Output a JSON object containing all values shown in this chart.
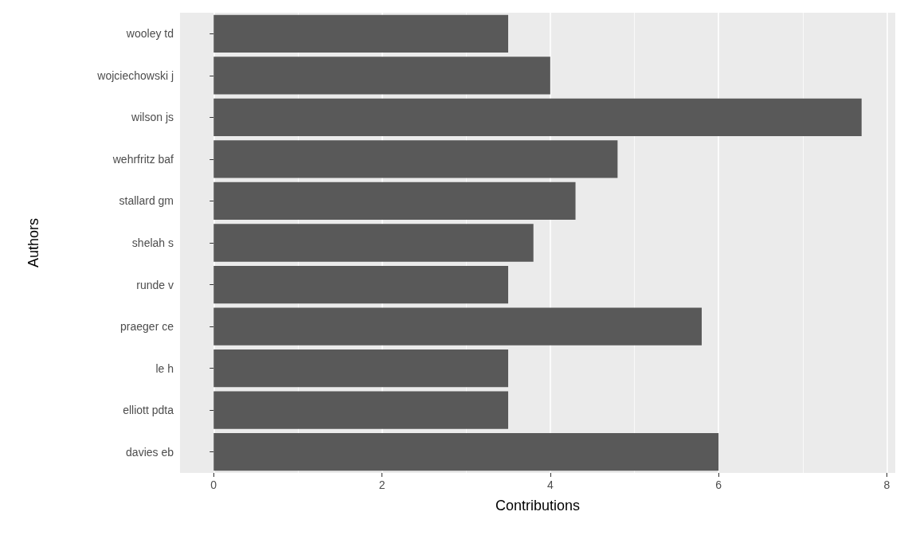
{
  "chart_data": {
    "type": "bar",
    "orientation": "horizontal",
    "xlabel": "Contributions",
    "ylabel": "Authors",
    "categories": [
      "wooley td",
      "wojciechowski j",
      "wilson js",
      "wehrfritz baf",
      "stallard gm",
      "shelah s",
      "runde v",
      "praeger ce",
      "le h",
      "elliott pdta",
      "davies eb"
    ],
    "series": [
      {
        "color": "#595959",
        "values": [
          3.5,
          4,
          7.7,
          4.8,
          4.3,
          3.8,
          3.5,
          5.8,
          3.5,
          3.5,
          6
        ]
      }
    ],
    "xlim": [
      -0.4,
      8.1
    ],
    "xticks": [
      0,
      2,
      4,
      6,
      8
    ],
    "grid": "x"
  }
}
